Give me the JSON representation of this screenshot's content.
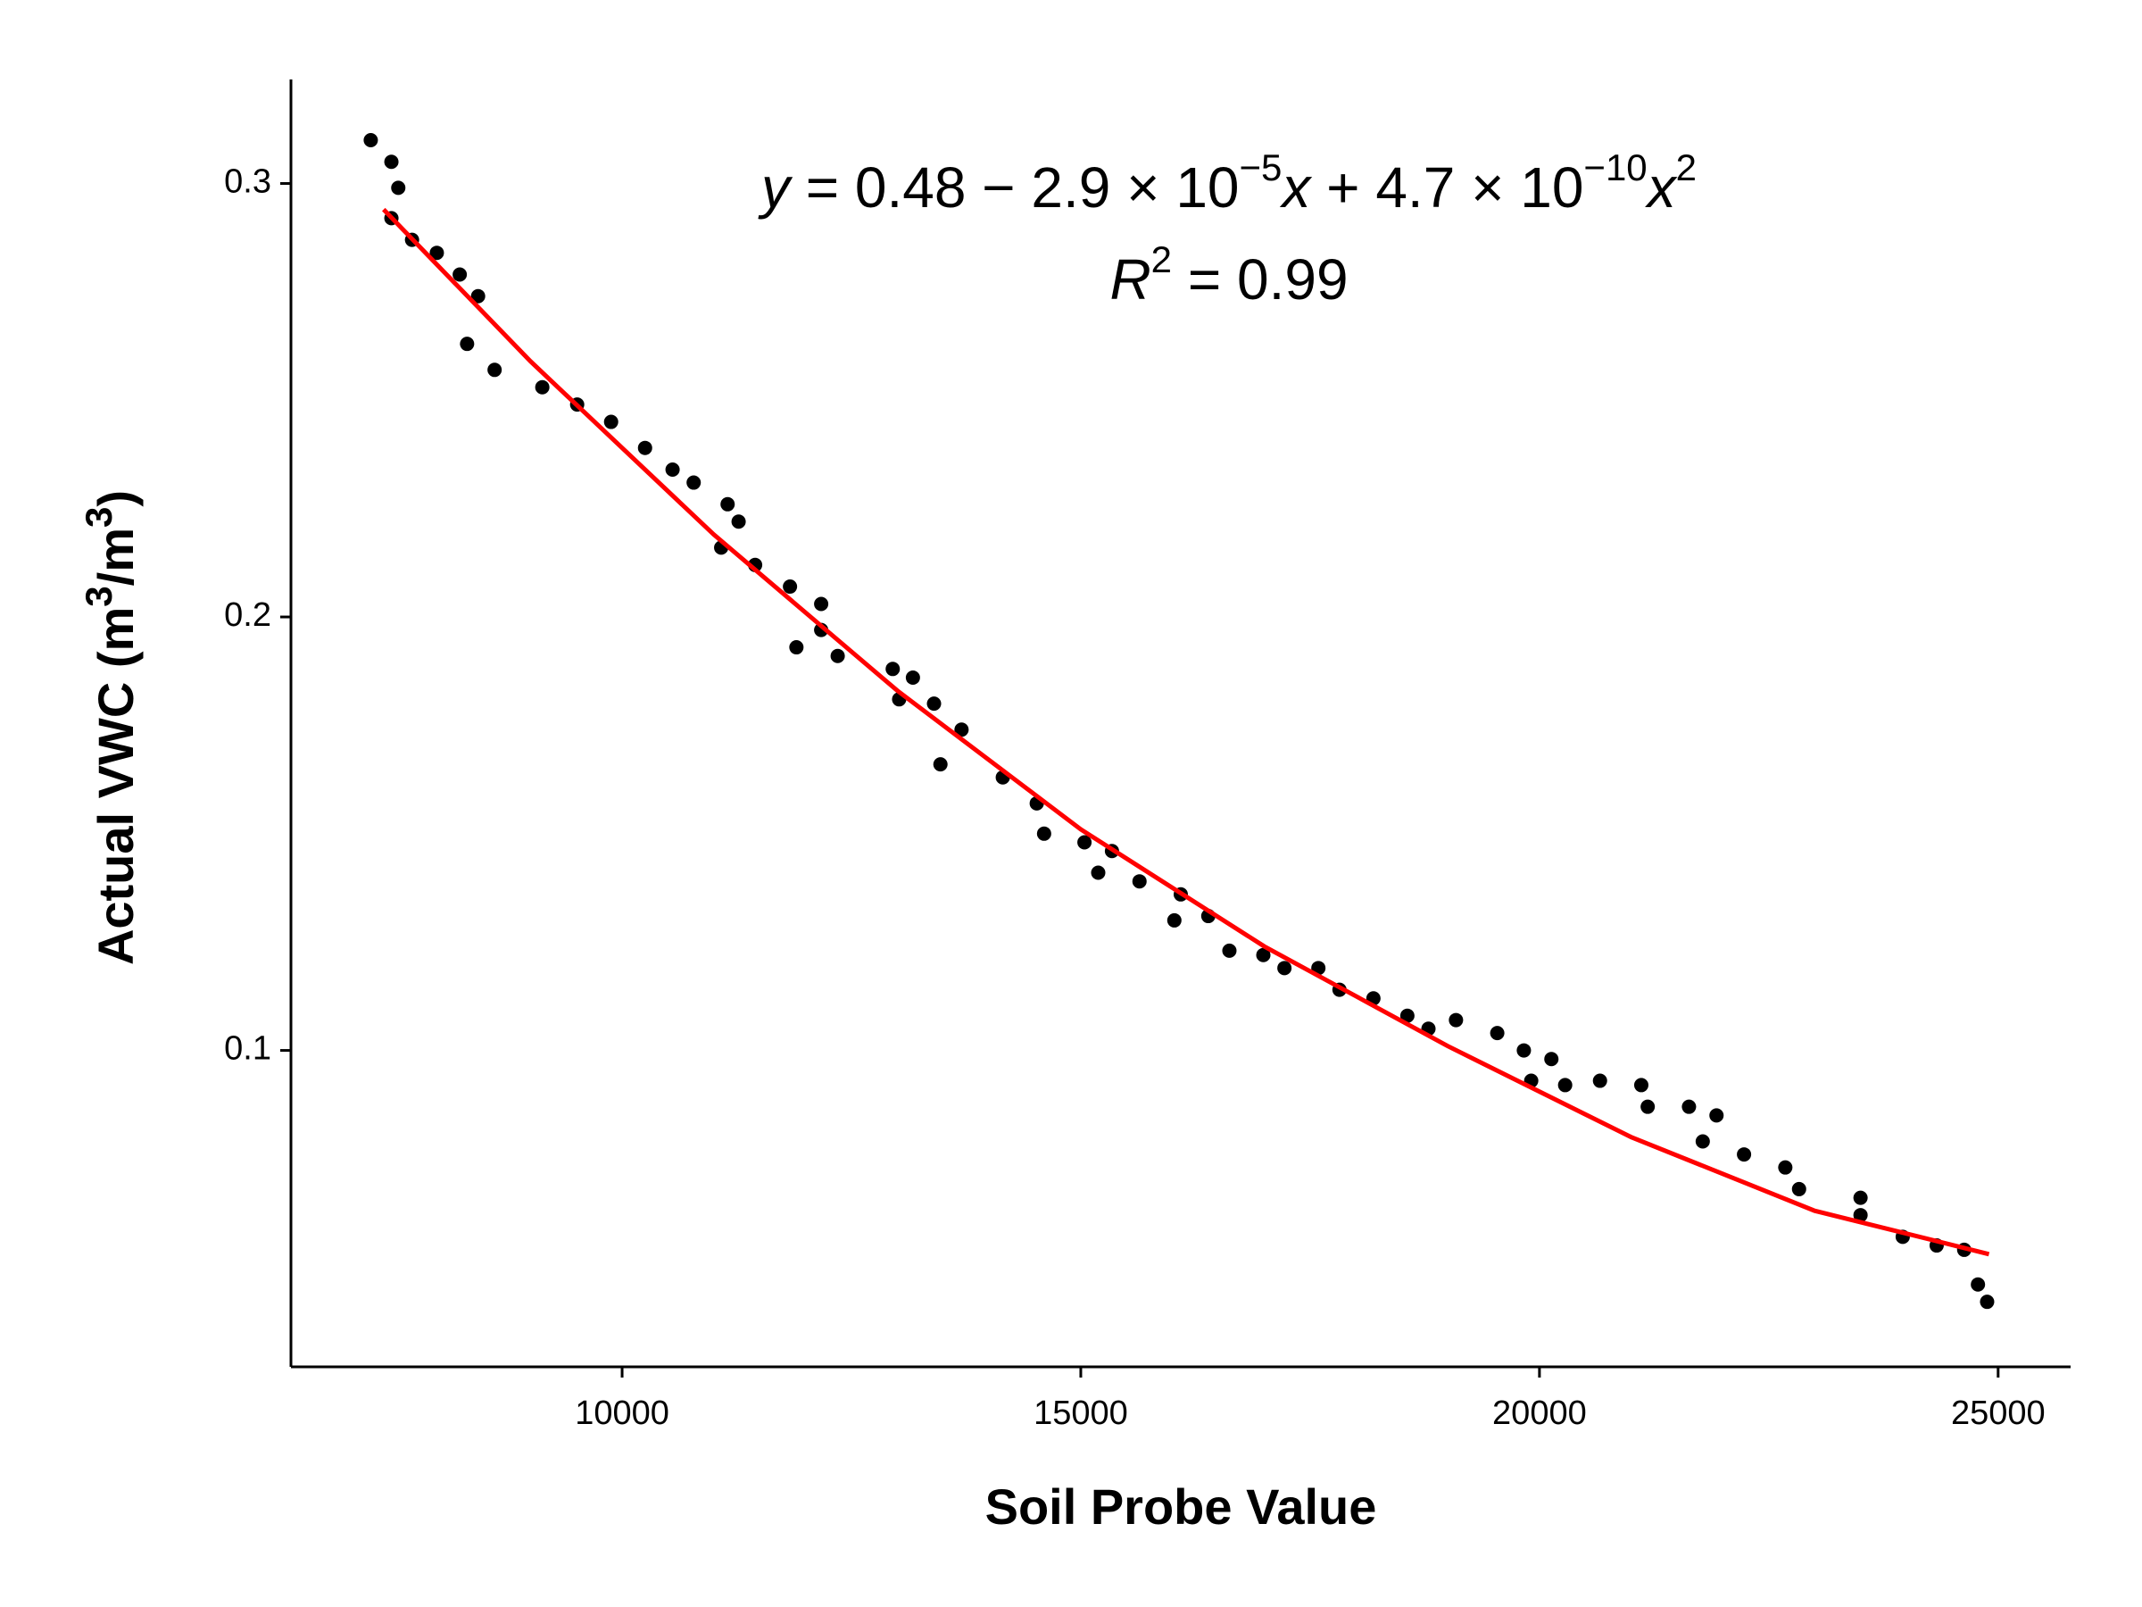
{
  "chart_data": {
    "type": "scatter",
    "x_label": "Soil Probe Value",
    "y_label": [
      "Actual VWC (m",
      "3",
      "/m",
      "3",
      ")"
    ],
    "equation": [
      "y",
      " = 0.48 − 2.9 × 10",
      "−5",
      "x",
      " + 4.7 × 10",
      "−10",
      "x",
      "2"
    ],
    "r_squared": [
      "R",
      "2",
      " = 0.99"
    ],
    "xlim": [
      6390,
      25790
    ],
    "ylim": [
      0.027,
      0.324
    ],
    "xticks": [
      10000,
      15000,
      20000,
      25000
    ],
    "yticks": [
      0.1,
      0.2,
      0.3
    ],
    "grid": false,
    "series": [
      {
        "color": "#000000",
        "x": [
          7260,
          7485,
          7560,
          7485,
          7710,
          7980,
          8230,
          8430,
          8310,
          8610,
          9130,
          9510,
          9880,
          10250,
          10550,
          10780,
          11150,
          11270,
          11080,
          11450,
          11830,
          12170,
          12170,
          11900,
          12350,
          12950,
          13170,
          13020,
          13400,
          13700,
          13470,
          14150,
          14520,
          14600,
          15040,
          15340,
          15190,
          15640,
          16090,
          16020,
          16390,
          16620,
          16990,
          17220,
          17590,
          17820,
          18190,
          18560,
          18790,
          19090,
          19540,
          19830,
          20130,
          19910,
          20280,
          20660,
          21110,
          21180,
          21630,
          21930,
          21780,
          22230,
          22680,
          22830,
          23500,
          23500,
          23960,
          24330,
          24630,
          24780,
          24880
        ],
        "values": [
          0.31,
          0.305,
          0.299,
          0.292,
          0.287,
          0.284,
          0.279,
          0.274,
          0.263,
          0.257,
          0.253,
          0.249,
          0.245,
          0.239,
          0.234,
          0.231,
          0.226,
          0.222,
          0.216,
          0.212,
          0.207,
          0.203,
          0.197,
          0.193,
          0.191,
          0.188,
          0.186,
          0.181,
          0.18,
          0.174,
          0.166,
          0.163,
          0.157,
          0.15,
          0.148,
          0.146,
          0.141,
          0.139,
          0.136,
          0.13,
          0.131,
          0.123,
          0.122,
          0.119,
          0.119,
          0.114,
          0.112,
          0.108,
          0.105,
          0.107,
          0.104,
          0.1,
          0.098,
          0.093,
          0.092,
          0.093,
          0.092,
          0.087,
          0.087,
          0.085,
          0.079,
          0.076,
          0.073,
          0.068,
          0.066,
          0.062,
          0.057,
          0.055,
          0.054,
          0.046,
          0.042
        ]
      },
      {
        "type": "line",
        "color": "#ff0000",
        "x": [
          7400,
          9000,
          11000,
          13000,
          15000,
          17000,
          19000,
          21000,
          23000,
          24900
        ],
        "values": [
          0.294,
          0.259,
          0.219,
          0.183,
          0.151,
          0.124,
          0.101,
          0.08,
          0.063,
          0.053
        ]
      }
    ]
  }
}
